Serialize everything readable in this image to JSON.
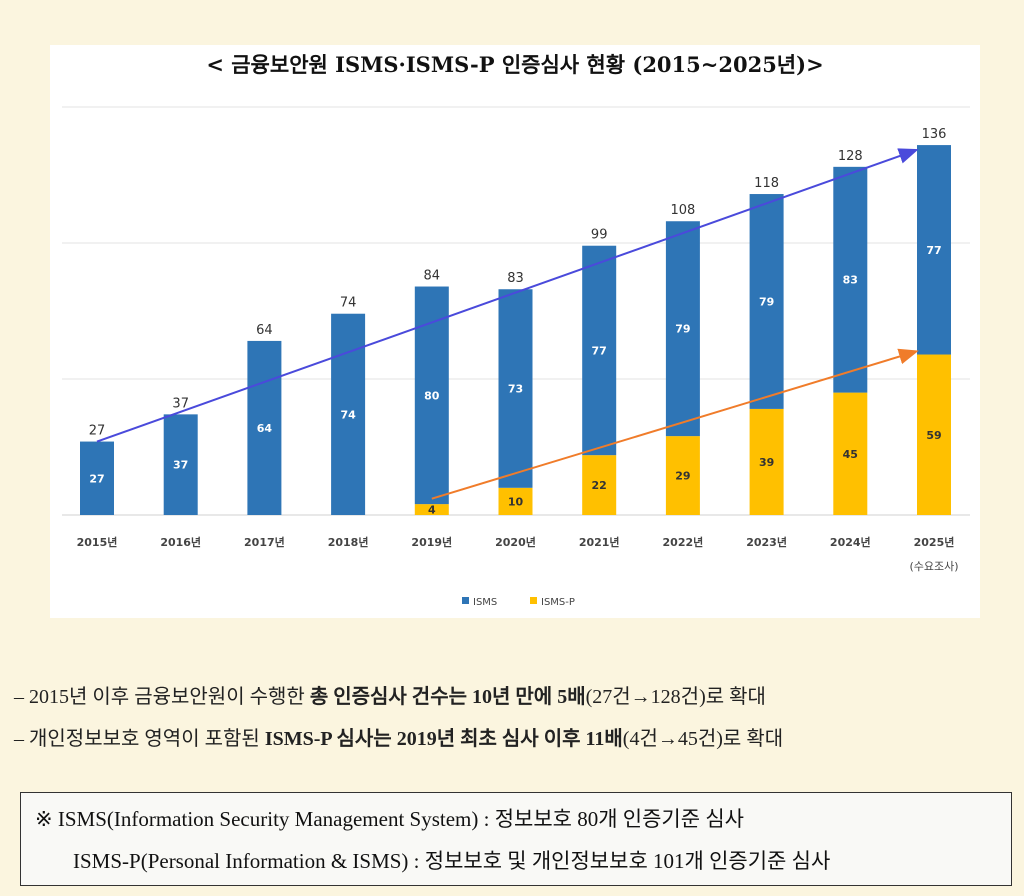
{
  "chart_data": {
    "type": "bar",
    "stacked": true,
    "title": "< 금융보안원 ISMS·ISMS-P 인증심사 현황 (2015~2025년)>",
    "categories": [
      "2015년",
      "2016년",
      "2017년",
      "2018년",
      "2019년",
      "2020년",
      "2021년",
      "2022년",
      "2023년",
      "2024년",
      "2025년"
    ],
    "category_sublabels": {
      "2025년": "(수요조사)"
    },
    "series": [
      {
        "name": "ISMS-P",
        "color": "#ffc000",
        "values": [
          0,
          0,
          0,
          0,
          4,
          10,
          22,
          29,
          39,
          45,
          59
        ]
      },
      {
        "name": "ISMS",
        "color": "#2e75b6",
        "values": [
          27,
          37,
          64,
          74,
          80,
          73,
          77,
          79,
          79,
          83,
          77
        ]
      }
    ],
    "totals": [
      27,
      37,
      64,
      74,
      84,
      83,
      99,
      108,
      118,
      128,
      136
    ],
    "ylim": [
      0,
      150
    ],
    "gridlines": [
      50,
      100,
      150
    ],
    "grid": true,
    "legend": "bottom",
    "annotations": [
      {
        "type": "arrow",
        "color": "#4a4adb",
        "from": [
          "2015년",
          27
        ],
        "to": [
          "2025년",
          134
        ]
      },
      {
        "type": "arrow",
        "color": "#f07c2a",
        "from": [
          "2019년",
          6
        ],
        "to": [
          "2025년",
          60
        ]
      }
    ]
  },
  "notes": [
    {
      "parts": [
        {
          "t": "– 2015년 이후 금융보안원이 수행한 ",
          "b": false
        },
        {
          "t": "총 인증심사 건수는 10년 만에 5배",
          "b": true
        },
        {
          "t": "(27건→128건)로 확대",
          "b": false
        }
      ]
    },
    {
      "parts": [
        {
          "t": "– 개인정보보호 영역이 포함된 ",
          "b": false
        },
        {
          "t": "ISMS-P 심사는 2019년 최초 심사 이후 11배",
          "b": true
        },
        {
          "t": "(4건→45건)로 확대",
          "b": false
        }
      ]
    }
  ],
  "definitions": {
    "line1": "※ ISMS(Information Security Management System) : 정보보호 80개 인증기준 심사",
    "line2": "ISMS-P(Personal Information & ISMS) : 정보보호 및 개인정보보호 101개 인증기준 심사"
  }
}
